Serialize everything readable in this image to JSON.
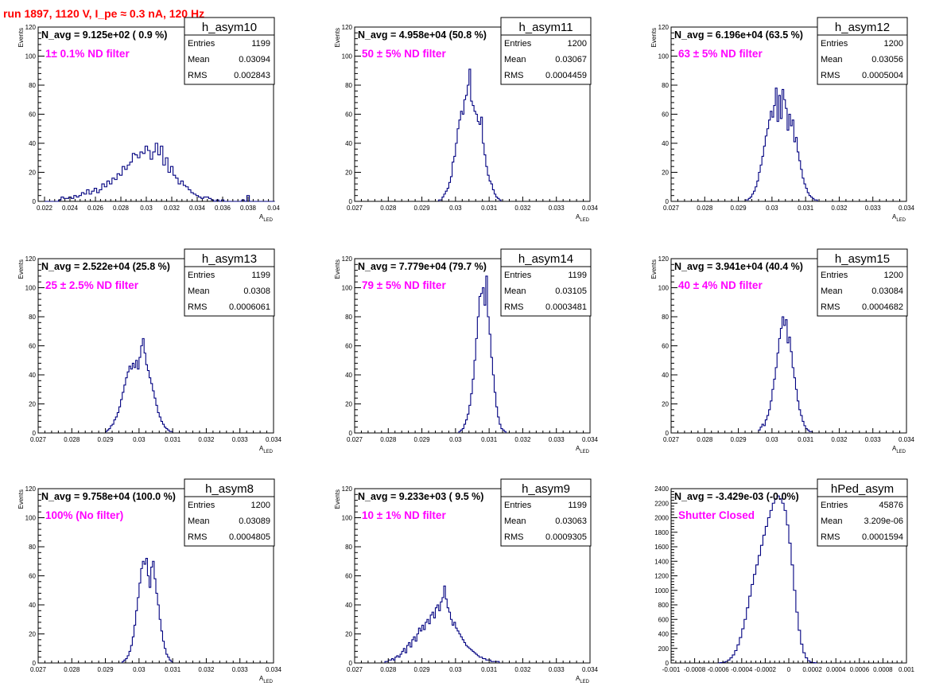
{
  "header": {
    "title": "run 1897,  1120 V, I_pe ≈ 0.3 nA, 120 Hz"
  },
  "colors": {
    "title": "#ff0000",
    "annotation": "#ff00ff",
    "histogram": "#000080"
  },
  "chart_data": [
    {
      "type": "histogram",
      "name": "h_asym10",
      "navg": "N_avg = 9.125e+02 ( 0.9 %)",
      "filter": "1± 0.1% ND filter",
      "stats": {
        "entries_label": "Entries",
        "entries": "1199",
        "mean_label": "Mean",
        "mean": "0.03094",
        "rms_label": "RMS",
        "rms": "0.002843"
      },
      "xlabel": "A",
      "xlabel_sub": "LED",
      "ylabel": "Events",
      "xlim": [
        0.0215,
        0.04
      ],
      "ylim": [
        0,
        120
      ],
      "xticks": [
        0.022,
        0.024,
        0.026,
        0.028,
        0.03,
        0.032,
        0.034,
        0.036,
        0.038,
        0.04
      ],
      "xtick_labels": [
        "0.022",
        "0.024",
        "0.026",
        "0.028",
        "0.03",
        "0.032",
        "0.034",
        "0.036",
        "0.038",
        "0.04"
      ],
      "yticks": [
        0,
        20,
        40,
        60,
        80,
        100,
        120
      ],
      "ytick_labels": [
        "0",
        "20",
        "40",
        "60",
        "80",
        "100",
        "120"
      ],
      "x_start": 0.0215,
      "bin_width": 0.0002,
      "counts": [
        0,
        0,
        0,
        0,
        0,
        0,
        0,
        0,
        1,
        3,
        2,
        2,
        3,
        2,
        4,
        3,
        4,
        6,
        5,
        8,
        5,
        7,
        9,
        6,
        8,
        12,
        10,
        14,
        12,
        16,
        15,
        19,
        18,
        24,
        22,
        25,
        27,
        33,
        32,
        30,
        34,
        33,
        38,
        35,
        29,
        34,
        40,
        32,
        38,
        25,
        30,
        20,
        24,
        18,
        16,
        12,
        14,
        11,
        10,
        8,
        6,
        5,
        4,
        3,
        2,
        3,
        3,
        2,
        1,
        0,
        1,
        0,
        1,
        0,
        0,
        0,
        0,
        0,
        0,
        0,
        1,
        0,
        4,
        0,
        0,
        0,
        0,
        0,
        0,
        0,
        0,
        0,
        0
      ]
    },
    {
      "type": "histogram",
      "name": "h_asym11",
      "navg": "N_avg = 4.958e+04 (50.8 %)",
      "filter": "50 ± 5% ND filter",
      "stats": {
        "entries_label": "Entries",
        "entries": "1200",
        "mean_label": "Mean",
        "mean": "0.03067",
        "rms_label": "RMS",
        "rms": "0.0004459"
      },
      "xlabel": "A",
      "xlabel_sub": "LED",
      "ylabel": "Events",
      "xlim": [
        0.027,
        0.034
      ],
      "ylim": [
        0,
        120
      ],
      "xticks": [
        0.027,
        0.028,
        0.029,
        0.03,
        0.031,
        0.032,
        0.033,
        0.034
      ],
      "xtick_labels": [
        "0.027",
        "0.028",
        "0.029",
        "0.03",
        "0.031",
        "0.032",
        "0.033",
        "0.034"
      ],
      "yticks": [
        0,
        20,
        40,
        60,
        80,
        100,
        120
      ],
      "ytick_labels": [
        "0",
        "20",
        "40",
        "60",
        "80",
        "100",
        "120"
      ],
      "x_start": 0.0295,
      "bin_width": 5e-05,
      "counts": [
        1,
        1,
        3,
        5,
        7,
        9,
        13,
        17,
        27,
        31,
        40,
        50,
        56,
        62,
        60,
        70,
        73,
        80,
        91,
        69,
        66,
        62,
        60,
        55,
        53,
        58,
        40,
        32,
        24,
        18,
        14,
        12,
        8,
        5,
        3,
        2,
        1
      ]
    },
    {
      "type": "histogram",
      "name": "h_asym12",
      "navg": "N_avg = 6.196e+04 (63.5 %)",
      "filter": "63 ± 5% ND filter",
      "stats": {
        "entries_label": "Entries",
        "entries": "1200",
        "mean_label": "Mean",
        "mean": "0.03056",
        "rms_label": "RMS",
        "rms": "0.0005004"
      },
      "xlabel": "A",
      "xlabel_sub": "LED",
      "ylabel": "Events",
      "xlim": [
        0.027,
        0.034
      ],
      "ylim": [
        0,
        120
      ],
      "xticks": [
        0.027,
        0.028,
        0.029,
        0.03,
        0.031,
        0.032,
        0.033,
        0.034
      ],
      "xtick_labels": [
        "0.027",
        "0.028",
        "0.029",
        "0.03",
        "0.031",
        "0.032",
        "0.033",
        "0.034"
      ],
      "yticks": [
        0,
        20,
        40,
        60,
        80,
        100,
        120
      ],
      "ytick_labels": [
        "0",
        "20",
        "40",
        "60",
        "80",
        "100",
        "120"
      ],
      "x_start": 0.0292,
      "bin_width": 5e-05,
      "counts": [
        1,
        1,
        2,
        3,
        5,
        7,
        10,
        14,
        20,
        25,
        31,
        38,
        45,
        50,
        56,
        62,
        58,
        66,
        78,
        55,
        73,
        57,
        77,
        70,
        64,
        49,
        60,
        52,
        56,
        41,
        44,
        34,
        28,
        22,
        16,
        12,
        9,
        6,
        4,
        3,
        2,
        1,
        1
      ]
    },
    {
      "type": "histogram",
      "name": "h_asym13",
      "navg": "N_avg = 2.522e+04 (25.8 %)",
      "filter": "25 ± 2.5% ND filter",
      "stats": {
        "entries_label": "Entries",
        "entries": "1199",
        "mean_label": "Mean",
        "mean": "0.0308",
        "rms_label": "RMS",
        "rms": "0.0006061"
      },
      "xlabel": "A",
      "xlabel_sub": "LED",
      "ylabel": "Events",
      "xlim": [
        0.027,
        0.034
      ],
      "ylim": [
        0,
        120
      ],
      "xticks": [
        0.027,
        0.028,
        0.029,
        0.03,
        0.031,
        0.032,
        0.033,
        0.034
      ],
      "xtick_labels": [
        "0.027",
        "0.028",
        "0.029",
        "0.03",
        "0.031",
        "0.032",
        "0.033",
        "0.034"
      ],
      "yticks": [
        0,
        20,
        40,
        60,
        80,
        100,
        120
      ],
      "ytick_labels": [
        "0",
        "20",
        "40",
        "60",
        "80",
        "100",
        "120"
      ],
      "x_start": 0.029,
      "bin_width": 5e-05,
      "counts": [
        1,
        2,
        3,
        5,
        6,
        9,
        11,
        14,
        18,
        23,
        28,
        33,
        38,
        42,
        46,
        44,
        48,
        45,
        50,
        44,
        52,
        60,
        65,
        55,
        47,
        43,
        38,
        34,
        29,
        24,
        19,
        14,
        11,
        8,
        6,
        4,
        3,
        2,
        1,
        1
      ]
    },
    {
      "type": "histogram",
      "name": "h_asym14",
      "navg": "N_avg = 7.779e+04 (79.7 %)",
      "filter": "79 ± 5% ND filter",
      "stats": {
        "entries_label": "Entries",
        "entries": "1199",
        "mean_label": "Mean",
        "mean": "0.03105",
        "rms_label": "RMS",
        "rms": "0.0003481"
      },
      "xlabel": "A",
      "xlabel_sub": "LED",
      "ylabel": "Events",
      "xlim": [
        0.027,
        0.034
      ],
      "ylim": [
        0,
        120
      ],
      "xticks": [
        0.027,
        0.028,
        0.029,
        0.03,
        0.031,
        0.032,
        0.033,
        0.034
      ],
      "xtick_labels": [
        "0.027",
        "0.028",
        "0.029",
        "0.03",
        "0.031",
        "0.032",
        "0.033",
        "0.034"
      ],
      "yticks": [
        0,
        20,
        40,
        60,
        80,
        100,
        120
      ],
      "ytick_labels": [
        "0",
        "20",
        "40",
        "60",
        "80",
        "100",
        "120"
      ],
      "x_start": 0.0301,
      "bin_width": 5e-05,
      "counts": [
        1,
        2,
        3,
        6,
        9,
        13,
        19,
        27,
        37,
        50,
        65,
        80,
        94,
        96,
        100,
        88,
        108,
        80,
        68,
        52,
        40,
        28,
        18,
        11,
        6,
        3,
        2,
        1
      ]
    },
    {
      "type": "histogram",
      "name": "h_asym15",
      "navg": "N_avg = 3.941e+04 (40.4 %)",
      "filter": "40 ± 4% ND filter",
      "stats": {
        "entries_label": "Entries",
        "entries": "1200",
        "mean_label": "Mean",
        "mean": "0.03084",
        "rms_label": "RMS",
        "rms": "0.0004682"
      },
      "xlabel": "A",
      "xlabel_sub": "LED",
      "ylabel": "Events",
      "xlim": [
        0.027,
        0.034
      ],
      "ylim": [
        0,
        120
      ],
      "xticks": [
        0.027,
        0.028,
        0.029,
        0.03,
        0.031,
        0.032,
        0.033,
        0.034
      ],
      "xtick_labels": [
        "0.027",
        "0.028",
        "0.029",
        "0.03",
        "0.031",
        "0.032",
        "0.033",
        "0.034"
      ],
      "yticks": [
        0,
        20,
        40,
        60,
        80,
        100,
        120
      ],
      "ytick_labels": [
        "0",
        "20",
        "40",
        "60",
        "80",
        "100",
        "120"
      ],
      "x_start": 0.0296,
      "bin_width": 5e-05,
      "counts": [
        2,
        4,
        6,
        5,
        9,
        12,
        16,
        22,
        30,
        37,
        45,
        55,
        65,
        72,
        80,
        74,
        78,
        62,
        66,
        56,
        45,
        38,
        30,
        22,
        16,
        12,
        8,
        5,
        3,
        2,
        1,
        1
      ]
    },
    {
      "type": "histogram",
      "name": "h_asym8",
      "navg": "N_avg = 9.758e+04 (100.0 %)",
      "filter": "100% (No filter)",
      "stats": {
        "entries_label": "Entries",
        "entries": "1200",
        "mean_label": "Mean",
        "mean": "0.03089",
        "rms_label": "RMS",
        "rms": "0.0004805"
      },
      "xlabel": "A",
      "xlabel_sub": "LED",
      "ylabel": "Events",
      "xlim": [
        0.027,
        0.034
      ],
      "ylim": [
        0,
        120
      ],
      "xticks": [
        0.027,
        0.028,
        0.029,
        0.03,
        0.031,
        0.032,
        0.033,
        0.034
      ],
      "xtick_labels": [
        "0.027",
        "0.028",
        "0.029",
        "0.03",
        "0.031",
        "0.032",
        "0.033",
        "0.034"
      ],
      "yticks": [
        0,
        20,
        40,
        60,
        80,
        100,
        120
      ],
      "ytick_labels": [
        "0",
        "20",
        "40",
        "60",
        "80",
        "100",
        "120"
      ],
      "x_start": 0.0295,
      "bin_width": 5e-05,
      "counts": [
        1,
        2,
        3,
        5,
        8,
        12,
        18,
        26,
        36,
        45,
        55,
        65,
        70,
        68,
        72,
        60,
        52,
        66,
        70,
        58,
        48,
        40,
        30,
        22,
        15,
        10,
        6,
        4,
        2,
        1
      ]
    },
    {
      "type": "histogram",
      "name": "h_asym9",
      "navg": "N_avg = 9.233e+03 ( 9.5 %)",
      "filter": "10 ± 1% ND filter",
      "stats": {
        "entries_label": "Entries",
        "entries": "1199",
        "mean_label": "Mean",
        "mean": "0.03063",
        "rms_label": "RMS",
        "rms": "0.0009305"
      },
      "xlabel": "A",
      "xlabel_sub": "LED",
      "ylabel": "Events",
      "xlim": [
        0.027,
        0.034
      ],
      "ylim": [
        0,
        120
      ],
      "xticks": [
        0.027,
        0.028,
        0.029,
        0.03,
        0.031,
        0.032,
        0.033,
        0.034
      ],
      "xtick_labels": [
        "0.027",
        "0.028",
        "0.029",
        "0.03",
        "0.031",
        "0.032",
        "0.033",
        "0.034"
      ],
      "yticks": [
        0,
        20,
        40,
        60,
        80,
        100,
        120
      ],
      "ytick_labels": [
        "0",
        "20",
        "40",
        "60",
        "80",
        "100",
        "120"
      ],
      "x_start": 0.0279,
      "bin_width": 5e-05,
      "counts": [
        1,
        1,
        2,
        2,
        3,
        2,
        4,
        5,
        4,
        6,
        8,
        10,
        7,
        12,
        14,
        11,
        16,
        18,
        15,
        20,
        24,
        22,
        26,
        23,
        28,
        30,
        27,
        33,
        35,
        31,
        38,
        40,
        36,
        42,
        45,
        53,
        44,
        38,
        35,
        30,
        26,
        28,
        24,
        22,
        20,
        18,
        16,
        14,
        12,
        11,
        10,
        9,
        8,
        7,
        6,
        5,
        4,
        4,
        3,
        3,
        2,
        2,
        2,
        1,
        1,
        1,
        1,
        1
      ]
    },
    {
      "type": "histogram",
      "name": "hPed_asym",
      "navg": "N_avg = -3.429e-03 (-0.0%)",
      "filter": "Shutter Closed",
      "stats": {
        "entries_label": "Entries",
        "entries": "45876",
        "mean_label": "Mean",
        "mean": "3.209e-06",
        "rms_label": "RMS",
        "rms": "0.0001594"
      },
      "xlabel": "",
      "xlabel_sub": "",
      "ylabel": "",
      "xlim": [
        -0.001,
        0.001
      ],
      "ylim": [
        0,
        2400
      ],
      "xticks": [
        -0.001,
        -0.0008,
        -0.0006,
        -0.0004,
        -0.0002,
        0,
        0.0002,
        0.0004,
        0.0006,
        0.0008,
        0.001
      ],
      "xtick_labels": [
        "-0.001",
        "-0.0008",
        "-0.0006",
        "-0.0004",
        "-0.0002",
        "0",
        "0.0002",
        "0.0004",
        "0.0006",
        "0.0008",
        "0.001"
      ],
      "yticks": [
        0,
        200,
        400,
        600,
        800,
        1000,
        1200,
        1400,
        1600,
        1800,
        2000,
        2200,
        2400
      ],
      "ytick_labels": [
        "0",
        "200",
        "400",
        "600",
        "800",
        "1000",
        "1200",
        "1400",
        "1600",
        "1800",
        "2000",
        "2200",
        "2400"
      ],
      "x_start": -0.0006,
      "bin_width": 2e-05,
      "counts": [
        2,
        5,
        10,
        20,
        40,
        70,
        110,
        170,
        250,
        350,
        470,
        600,
        760,
        920,
        1080,
        1220,
        1350,
        1480,
        1620,
        1760,
        1880,
        2000,
        2100,
        2200,
        2260,
        2300,
        2260,
        2200,
        2100,
        1900,
        1650,
        1350,
        1000,
        700,
        450,
        260,
        140,
        70,
        30,
        12,
        5,
        2
      ]
    }
  ]
}
